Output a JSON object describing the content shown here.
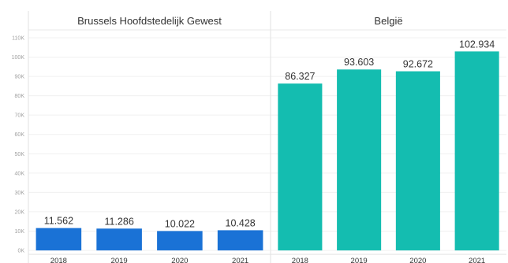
{
  "chart_data": {
    "type": "bar",
    "ylim": [
      0,
      110000
    ],
    "yticks": [
      "0K",
      "10K",
      "20K",
      "30K",
      "40K",
      "50K",
      "60K",
      "70K",
      "80K",
      "90K",
      "100K",
      "110K"
    ],
    "grid": true,
    "panels": [
      {
        "title": "Brussels Hoofdstedelijk Gewest",
        "color": "#1a72d6",
        "categories": [
          "2018",
          "2019",
          "2020",
          "2021"
        ],
        "values": [
          11562,
          11286,
          10022,
          10428
        ],
        "labels": [
          "11.562",
          "11.286",
          "10.022",
          "10.428"
        ]
      },
      {
        "title": "België",
        "color": "#14bdb0",
        "categories": [
          "2018",
          "2019",
          "2020",
          "2021"
        ],
        "values": [
          86327,
          93603,
          92672,
          102934
        ],
        "labels": [
          "86.327",
          "93.603",
          "92.672",
          "102.934"
        ]
      }
    ]
  }
}
